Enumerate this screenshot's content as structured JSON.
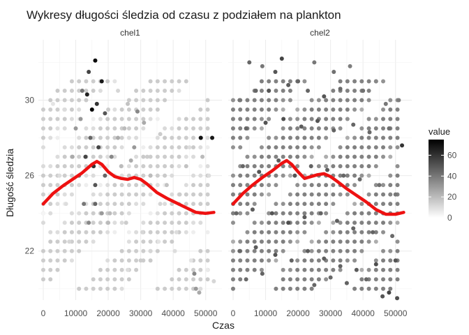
{
  "chart_data": {
    "type": "scatter",
    "title": "Wykresy długości śledzia od czasu z podziałem na plankton",
    "xlabel": "Czas",
    "ylabel": "Długość śledzia",
    "xlim": [
      -1500,
      55000
    ],
    "ylim": [
      19.4,
      33.2
    ],
    "x_ticks": [
      0,
      10000,
      20000,
      30000,
      40000,
      50000
    ],
    "x_tick_labels": [
      "0",
      "10000",
      "20000",
      "30000",
      "40000",
      "50000"
    ],
    "y_ticks": [
      22,
      26,
      30
    ],
    "y_tick_labels": [
      "22",
      "26",
      "30"
    ],
    "grid": true,
    "point_color_scale": {
      "name": "value",
      "low": "#ffffff",
      "high": "#000000",
      "min": 0,
      "max": 75,
      "ticks": [
        0,
        20,
        40,
        60
      ]
    },
    "smooth_color": "#ee1111",
    "legend": {
      "title": "value",
      "position": "right",
      "labels": [
        "0",
        "20",
        "40",
        "60"
      ]
    },
    "panels": [
      {
        "name": "chel1",
        "smooth": [
          [
            0,
            24.5
          ],
          [
            3000,
            25.05
          ],
          [
            6000,
            25.45
          ],
          [
            9000,
            25.8
          ],
          [
            12000,
            26.15
          ],
          [
            15000,
            26.6
          ],
          [
            16500,
            26.75
          ],
          [
            18000,
            26.6
          ],
          [
            20000,
            26.2
          ],
          [
            22000,
            25.95
          ],
          [
            24000,
            25.85
          ],
          [
            26000,
            25.8
          ],
          [
            28000,
            25.9
          ],
          [
            30000,
            25.8
          ],
          [
            32000,
            25.55
          ],
          [
            35000,
            25.1
          ],
          [
            38000,
            24.8
          ],
          [
            41000,
            24.55
          ],
          [
            44000,
            24.3
          ],
          [
            47000,
            24.05
          ],
          [
            50000,
            24.0
          ],
          [
            52500,
            24.05
          ]
        ],
        "points": [
          [
            16000,
            32.1,
            72
          ],
          [
            14000,
            31.5,
            55
          ],
          [
            18000,
            31.0,
            68
          ],
          [
            12000,
            30.5,
            40
          ],
          [
            13500,
            30.3,
            65
          ],
          [
            16500,
            29.8,
            60
          ],
          [
            15000,
            29.5,
            75
          ],
          [
            19000,
            29.3,
            50
          ],
          [
            11500,
            29.0,
            30
          ],
          [
            20000,
            29.5,
            15
          ],
          [
            25000,
            28.5,
            20
          ],
          [
            29000,
            29.4,
            35
          ],
          [
            31000,
            28.8,
            25
          ],
          [
            36000,
            28.2,
            15
          ],
          [
            45000,
            27.5,
            10
          ],
          [
            48500,
            28.0,
            70
          ],
          [
            52000,
            28.0,
            68
          ],
          [
            3000,
            29.8,
            8
          ],
          [
            6500,
            29.5,
            10
          ],
          [
            23000,
            30.5,
            12
          ],
          [
            26000,
            29.8,
            18
          ],
          [
            22000,
            31.0,
            8
          ],
          [
            10000,
            28.5,
            30
          ],
          [
            14500,
            28.0,
            45
          ],
          [
            17000,
            27.5,
            55
          ],
          [
            21000,
            27.0,
            35
          ],
          [
            27000,
            26.8,
            25
          ],
          [
            33000,
            26.0,
            20
          ],
          [
            38000,
            25.5,
            18
          ],
          [
            42000,
            25.0,
            15
          ],
          [
            9000,
            27.0,
            25
          ],
          [
            5000,
            26.0,
            10
          ],
          [
            15500,
            26.5,
            60
          ],
          [
            16000,
            25.5,
            50
          ],
          [
            12500,
            24.5,
            40
          ],
          [
            20500,
            24.0,
            20
          ],
          [
            25500,
            23.5,
            15
          ],
          [
            30500,
            23.0,
            12
          ],
          [
            35500,
            22.5,
            8
          ],
          [
            40500,
            22.0,
            10
          ],
          [
            45500,
            21.5,
            8
          ],
          [
            50500,
            21.0,
            6
          ],
          [
            11000,
            23.0,
            15
          ],
          [
            8000,
            22.5,
            12
          ],
          [
            46500,
            20.8,
            35
          ],
          [
            47000,
            20.0,
            30
          ],
          [
            48000,
            19.8,
            25
          ],
          [
            52500,
            20.4,
            12
          ],
          [
            26000,
            21.0,
            10
          ],
          [
            30000,
            21.5,
            15
          ],
          [
            33000,
            22.0,
            12
          ],
          [
            20000,
            23.5,
            20
          ],
          [
            18000,
            24.0,
            30
          ],
          [
            14000,
            23.5,
            35
          ],
          [
            7000,
            24.5,
            10
          ],
          [
            2000,
            25.0,
            5
          ],
          [
            0,
            24.0,
            3
          ],
          [
            41000,
            23.0,
            10
          ],
          [
            36000,
            24.5,
            12
          ],
          [
            44000,
            26.5,
            18
          ],
          [
            49000,
            27.0,
            20
          ],
          [
            28000,
            27.5,
            30
          ],
          [
            23000,
            28.0,
            25
          ],
          [
            19000,
            26.0,
            45
          ],
          [
            13000,
            27.0,
            55
          ],
          [
            11000,
            26.0,
            40
          ],
          [
            16000,
            24.5,
            45
          ],
          [
            24000,
            26.5,
            20
          ],
          [
            32000,
            27.0,
            15
          ],
          [
            51000,
            26.0,
            10
          ]
        ]
      },
      {
        "name": "chel2",
        "smooth": [
          [
            0,
            24.5
          ],
          [
            3000,
            25.05
          ],
          [
            6000,
            25.5
          ],
          [
            9000,
            25.9
          ],
          [
            12000,
            26.25
          ],
          [
            15000,
            26.65
          ],
          [
            16500,
            26.8
          ],
          [
            18000,
            26.6
          ],
          [
            20000,
            26.2
          ],
          [
            22000,
            25.85
          ],
          [
            24000,
            25.95
          ],
          [
            26000,
            26.05
          ],
          [
            28000,
            26.1
          ],
          [
            30000,
            25.95
          ],
          [
            32000,
            25.7
          ],
          [
            35000,
            25.3
          ],
          [
            38000,
            24.95
          ],
          [
            41000,
            24.6
          ],
          [
            44000,
            24.2
          ],
          [
            47000,
            23.95
          ],
          [
            50000,
            23.95
          ],
          [
            52500,
            24.05
          ]
        ],
        "points": [
          [
            5000,
            32.0,
            45
          ],
          [
            9000,
            31.8,
            40
          ],
          [
            13000,
            31.5,
            50
          ],
          [
            15000,
            32.2,
            55
          ],
          [
            20000,
            31.0,
            45
          ],
          [
            25000,
            32.0,
            40
          ],
          [
            31000,
            31.5,
            42
          ],
          [
            36000,
            31.8,
            38
          ],
          [
            44000,
            31.0,
            35
          ],
          [
            2000,
            30.0,
            40
          ],
          [
            7000,
            30.5,
            45
          ],
          [
            11000,
            30.5,
            50
          ],
          [
            17000,
            30.8,
            48
          ],
          [
            23000,
            30.5,
            45
          ],
          [
            28000,
            30.2,
            50
          ],
          [
            33000,
            30.6,
            44
          ],
          [
            40000,
            30.5,
            42
          ],
          [
            47000,
            29.8,
            40
          ],
          [
            51000,
            30.0,
            38
          ],
          [
            4000,
            28.5,
            45
          ],
          [
            10000,
            28.8,
            50
          ],
          [
            15500,
            29.0,
            52
          ],
          [
            21000,
            28.6,
            48
          ],
          [
            26000,
            28.9,
            50
          ],
          [
            31000,
            28.4,
            46
          ],
          [
            37000,
            28.7,
            45
          ],
          [
            42000,
            28.3,
            44
          ],
          [
            48000,
            28.5,
            42
          ],
          [
            52000,
            27.6,
            60
          ],
          [
            3000,
            26.5,
            45
          ],
          [
            8000,
            26.2,
            50
          ],
          [
            14000,
            26.8,
            48
          ],
          [
            19000,
            26.0,
            50
          ],
          [
            24000,
            26.5,
            46
          ],
          [
            29000,
            26.3,
            48
          ],
          [
            34000,
            26.0,
            45
          ],
          [
            39000,
            25.8,
            44
          ],
          [
            45000,
            25.5,
            42
          ],
          [
            50000,
            25.0,
            40
          ],
          [
            1000,
            24.0,
            45
          ],
          [
            6000,
            24.2,
            48
          ],
          [
            12000,
            24.0,
            50
          ],
          [
            17000,
            23.5,
            52
          ],
          [
            22000,
            23.8,
            48
          ],
          [
            27000,
            24.0,
            46
          ],
          [
            32000,
            23.6,
            47
          ],
          [
            37000,
            23.2,
            45
          ],
          [
            43000,
            23.0,
            46
          ],
          [
            49000,
            22.8,
            44
          ],
          [
            2000,
            22.0,
            45
          ],
          [
            7000,
            22.2,
            48
          ],
          [
            13000,
            21.8,
            50
          ],
          [
            18000,
            21.5,
            46
          ],
          [
            23000,
            22.0,
            48
          ],
          [
            28000,
            21.6,
            47
          ],
          [
            33000,
            21.2,
            46
          ],
          [
            38000,
            21.0,
            48
          ],
          [
            44000,
            21.3,
            52
          ],
          [
            50000,
            21.5,
            50
          ],
          [
            4000,
            20.5,
            44
          ],
          [
            9000,
            20.8,
            46
          ],
          [
            25000,
            20.2,
            45
          ],
          [
            30000,
            20.6,
            44
          ],
          [
            35000,
            20.3,
            46
          ],
          [
            41000,
            20.5,
            45
          ],
          [
            46000,
            19.6,
            50
          ],
          [
            48000,
            19.8,
            55
          ],
          [
            50500,
            19.5,
            52
          ]
        ]
      }
    ]
  }
}
